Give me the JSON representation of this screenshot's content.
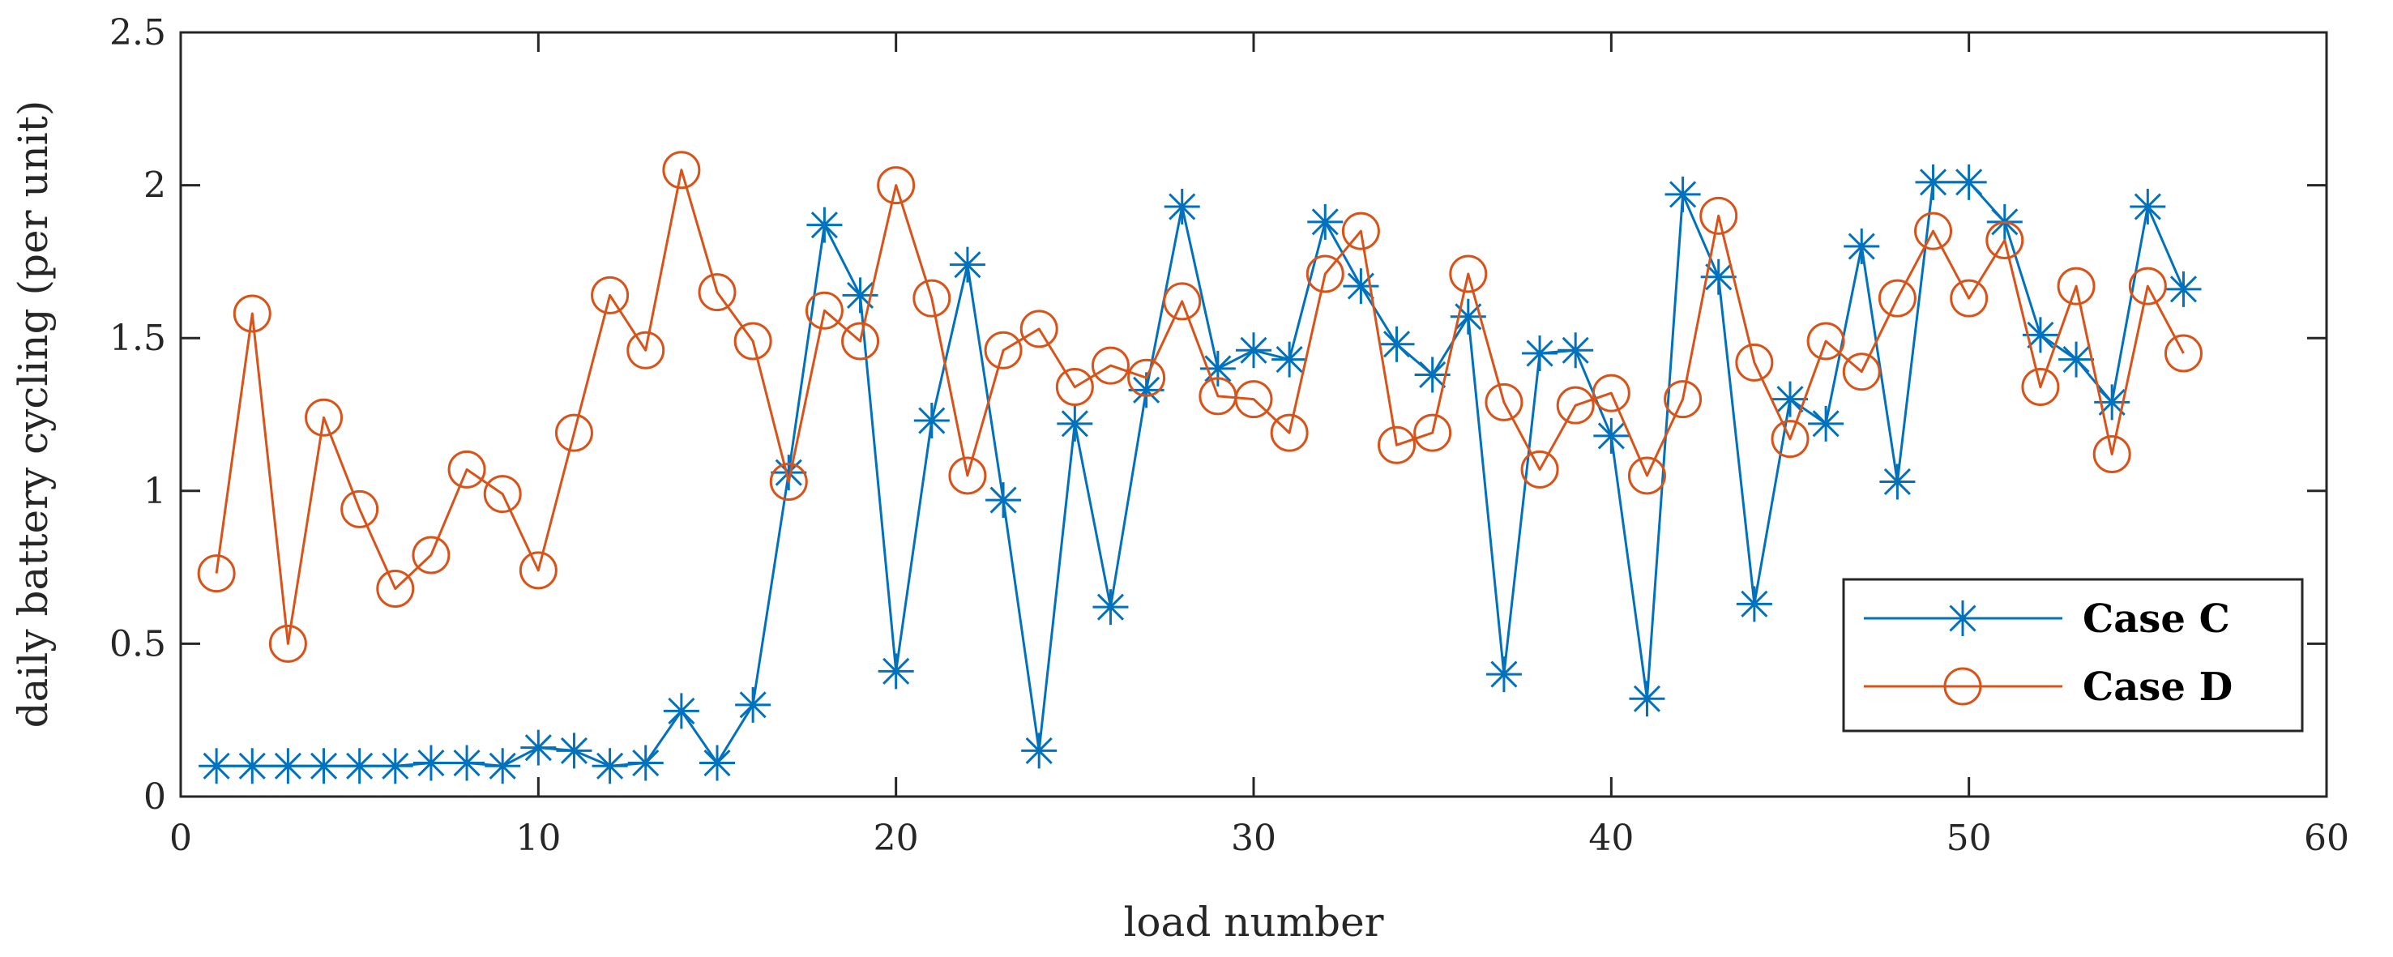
{
  "chart_data": {
    "type": "line",
    "title": "",
    "xlabel": "load number",
    "ylabel": "daily battery cycling (per unit)",
    "xlim": [
      0,
      60
    ],
    "ylim": [
      0,
      2.5
    ],
    "xticks": [
      "0",
      "10",
      "20",
      "30",
      "40",
      "50",
      "60"
    ],
    "yticks": [
      "0",
      "0.5",
      "1",
      "1.5",
      "2",
      "2.5"
    ],
    "grid": false,
    "legend_position": "bottom-right",
    "x": [
      1,
      2,
      3,
      4,
      5,
      6,
      7,
      8,
      9,
      10,
      11,
      12,
      13,
      14,
      15,
      16,
      17,
      18,
      19,
      20,
      21,
      22,
      23,
      24,
      25,
      26,
      27,
      28,
      29,
      30,
      31,
      32,
      33,
      34,
      35,
      36,
      37,
      38,
      39,
      40,
      41,
      42,
      43,
      44,
      45,
      46,
      47,
      48,
      49,
      50,
      51,
      52,
      53,
      54,
      55,
      56
    ],
    "series": [
      {
        "name": "Case C",
        "color": "#0072BD",
        "marker": "asterisk",
        "values": [
          0.1,
          0.1,
          0.1,
          0.1,
          0.1,
          0.1,
          0.11,
          0.11,
          0.1,
          0.16,
          0.15,
          0.1,
          0.11,
          0.28,
          0.11,
          0.3,
          1.06,
          1.87,
          1.64,
          0.41,
          1.23,
          1.74,
          0.97,
          0.15,
          1.22,
          0.62,
          1.33,
          1.93,
          1.4,
          1.46,
          1.43,
          1.88,
          1.67,
          1.48,
          1.38,
          1.57,
          0.4,
          1.45,
          1.46,
          1.18,
          0.32,
          1.97,
          1.7,
          0.63,
          1.3,
          1.22,
          1.8,
          1.03,
          2.01,
          2.01,
          1.88,
          1.51,
          1.43,
          1.29,
          1.93,
          1.66
        ]
      },
      {
        "name": "Case D",
        "color": "#D95319",
        "marker": "circle",
        "values": [
          0.73,
          1.58,
          0.5,
          1.24,
          0.94,
          0.68,
          0.79,
          1.07,
          0.99,
          0.74,
          1.19,
          1.64,
          1.46,
          2.05,
          1.65,
          1.49,
          1.03,
          1.59,
          1.49,
          2.0,
          1.63,
          1.05,
          1.46,
          1.53,
          1.34,
          1.41,
          1.37,
          1.62,
          1.31,
          1.3,
          1.19,
          1.71,
          1.85,
          1.15,
          1.19,
          1.71,
          1.29,
          1.07,
          1.28,
          1.32,
          1.05,
          1.3,
          1.9,
          1.42,
          1.17,
          1.49,
          1.39,
          1.63,
          1.85,
          1.63,
          1.82,
          1.34,
          1.67,
          1.12,
          1.67,
          1.45
        ]
      }
    ]
  }
}
